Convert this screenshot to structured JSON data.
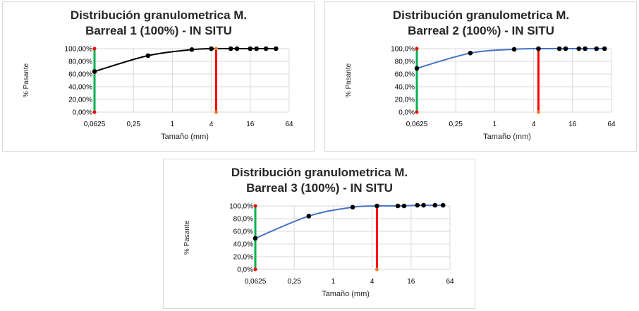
{
  "chart_data": [
    {
      "type": "line",
      "title_lines": [
        "Distribución granulometrica M.",
        "Barreal 1 (100%) - IN SITU"
      ],
      "xlabel": "Tamaño (mm)",
      "ylabel": "% Pasante",
      "x_scale": "log2",
      "xlim": [
        0.0625,
        64
      ],
      "ylim": [
        0,
        100
      ],
      "x_tick_labels": [
        "0,0625",
        "0,25",
        "1",
        "4",
        "16",
        "64"
      ],
      "x_tick_values": [
        0.0625,
        0.25,
        1,
        4,
        16,
        64
      ],
      "y_tick_labels": [
        "0,00%",
        "20,00%",
        "40,00%",
        "60,00%",
        "80,00%",
        "100,00%"
      ],
      "y_tick_values": [
        0,
        20,
        40,
        60,
        80,
        100
      ],
      "grid": true,
      "curve_color": "#000000",
      "points": [
        {
          "x": 0.0625,
          "y": 64
        },
        {
          "x": 0.42,
          "y": 89
        },
        {
          "x": 2.0,
          "y": 98.5
        },
        {
          "x": 4.0,
          "y": 100
        },
        {
          "x": 8.0,
          "y": 100
        },
        {
          "x": 10.0,
          "y": 100
        },
        {
          "x": 16.0,
          "y": 100
        },
        {
          "x": 20.0,
          "y": 100
        },
        {
          "x": 28.0,
          "y": 100
        },
        {
          "x": 40.0,
          "y": 100
        }
      ],
      "vlines": [
        {
          "x": 0.0625,
          "color": "#00b050",
          "marker_color": "#ff0000"
        },
        {
          "x": 4.75,
          "color": "#ff0000",
          "marker_color": "#ed7d31"
        }
      ]
    },
    {
      "type": "line",
      "title_lines": [
        "Distribución granulometrica M.",
        "Barreal 2 (100%) - IN SITU"
      ],
      "xlabel": "Tamaño (mm)",
      "ylabel": "% Pasante",
      "x_scale": "log2",
      "xlim": [
        0.0625,
        64
      ],
      "ylim": [
        0,
        100
      ],
      "x_tick_labels": [
        "0,0625",
        "0,25",
        "1",
        "4",
        "16",
        "64"
      ],
      "x_tick_values": [
        0.0625,
        0.25,
        1,
        4,
        16,
        64
      ],
      "y_tick_labels": [
        "0,0%",
        "20,0%",
        "40,0%",
        "60,0%",
        "80,0%",
        "100,0%"
      ],
      "y_tick_values": [
        0,
        20,
        40,
        60,
        80,
        100
      ],
      "grid": true,
      "curve_color": "#4472c4",
      "points": [
        {
          "x": 0.0625,
          "y": 69
        },
        {
          "x": 0.42,
          "y": 93
        },
        {
          "x": 2.0,
          "y": 99
        },
        {
          "x": 4.75,
          "y": 100
        },
        {
          "x": 10.0,
          "y": 100
        },
        {
          "x": 12.5,
          "y": 100
        },
        {
          "x": 20.0,
          "y": 100
        },
        {
          "x": 25.0,
          "y": 100
        },
        {
          "x": 37.5,
          "y": 100
        },
        {
          "x": 50.0,
          "y": 100
        }
      ],
      "vlines": [
        {
          "x": 0.0625,
          "color": "#00b050",
          "marker_color": "#ff0000"
        },
        {
          "x": 4.75,
          "color": "#ff0000",
          "marker_color": "#ed7d31"
        }
      ]
    },
    {
      "type": "line",
      "title_lines": [
        "Distribución granulometrica M.",
        "Barreal 3 (100%) - IN SITU"
      ],
      "xlabel": "Tamaño (mm)",
      "ylabel": "% Pasante",
      "x_scale": "log2",
      "xlim": [
        0.0625,
        64
      ],
      "ylim": [
        0,
        100
      ],
      "x_tick_labels": [
        "0,0625",
        "0,25",
        "1",
        "4",
        "16",
        "64"
      ],
      "x_tick_values": [
        0.0625,
        0.25,
        1,
        4,
        16,
        64
      ],
      "y_tick_labels": [
        "0,0%",
        "20,0%",
        "40,0%",
        "60,0%",
        "80,0%",
        "100,0%"
      ],
      "y_tick_values": [
        0,
        20,
        40,
        60,
        80,
        100
      ],
      "grid": true,
      "curve_color": "#4472c4",
      "points": [
        {
          "x": 0.0625,
          "y": 49
        },
        {
          "x": 0.42,
          "y": 84
        },
        {
          "x": 2.0,
          "y": 98
        },
        {
          "x": 4.75,
          "y": 100
        },
        {
          "x": 10.0,
          "y": 100
        },
        {
          "x": 12.5,
          "y": 100
        },
        {
          "x": 20.0,
          "y": 101
        },
        {
          "x": 25.0,
          "y": 101
        },
        {
          "x": 37.5,
          "y": 101
        },
        {
          "x": 50.0,
          "y": 101
        }
      ],
      "vlines": [
        {
          "x": 0.0625,
          "color": "#00b050",
          "marker_color": "#ff0000"
        },
        {
          "x": 4.75,
          "color": "#ff0000",
          "marker_color": "#ed7d31"
        }
      ]
    }
  ]
}
